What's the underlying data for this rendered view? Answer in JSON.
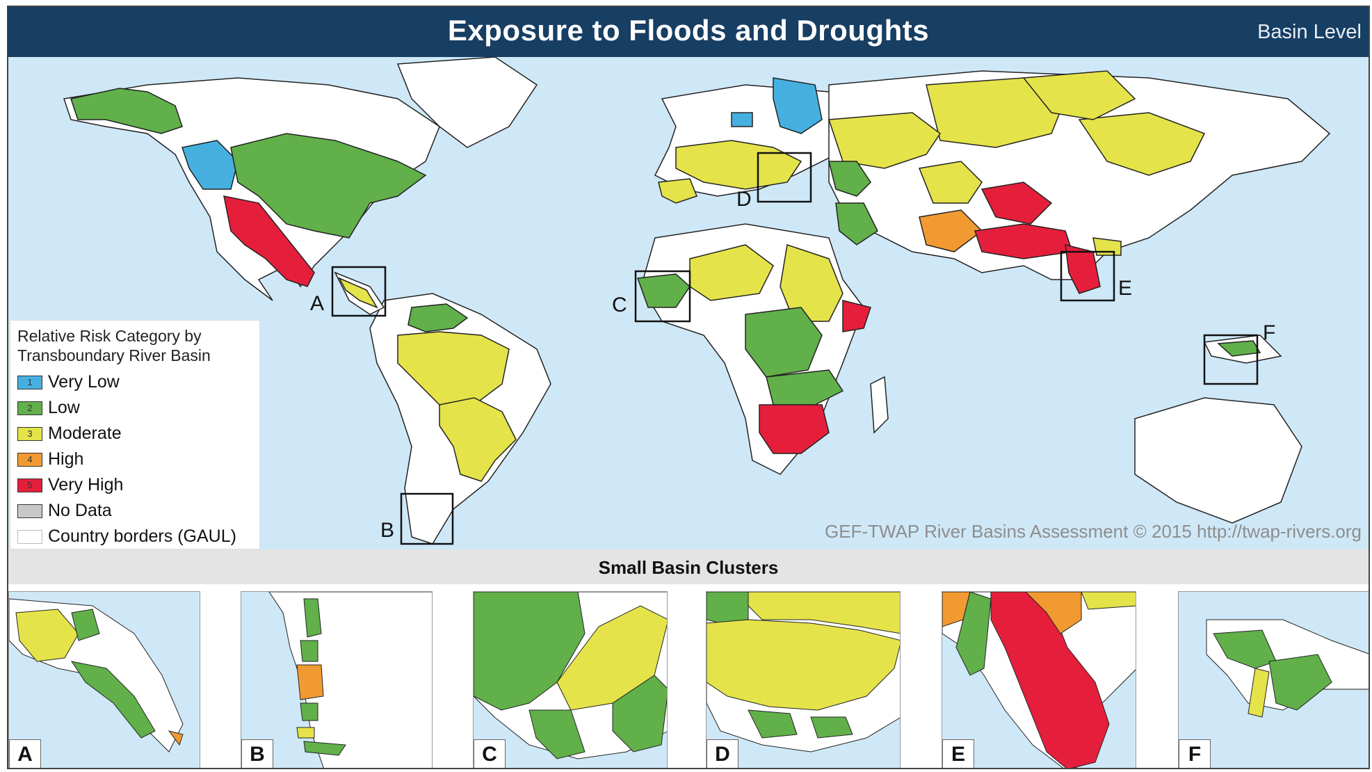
{
  "header": {
    "title": "Exposure to Floods and Droughts",
    "level": "Basin Level"
  },
  "colors": {
    "very_low": "#45b0e0",
    "low": "#61b04a",
    "moderate": "#e5e34a",
    "high": "#f19a32",
    "very_high": "#e51f3b",
    "no_data": "#c8c8c8",
    "ocean": "#cfe8f7",
    "land": "#ffffff",
    "header_bg": "#173e63"
  },
  "legend": {
    "title_line1": "Relative Risk Category by",
    "title_line2": "Transboundary River Basin",
    "items": [
      {
        "code": "1",
        "label": "Very Low",
        "color": "#45b0e0"
      },
      {
        "code": "2",
        "label": "Low",
        "color": "#61b04a"
      },
      {
        "code": "3",
        "label": "Moderate",
        "color": "#e5e34a"
      },
      {
        "code": "4",
        "label": "High",
        "color": "#f19a32"
      },
      {
        "code": "5",
        "label": "Very High",
        "color": "#e51f3b"
      },
      {
        "code": "",
        "label": "No Data",
        "color": "#c8c8c8"
      },
      {
        "code": "",
        "label": "Country borders (GAUL)",
        "color": "#ffffff"
      }
    ]
  },
  "map": {
    "credit": "GEF-TWAP River Basins Assessment © 2015 http://twap-rivers.org",
    "inset_markers": [
      "A",
      "B",
      "C",
      "D",
      "E",
      "F"
    ]
  },
  "clusters": {
    "title": "Small Basin Clusters",
    "panels": [
      "A",
      "B",
      "C",
      "D",
      "E",
      "F"
    ]
  }
}
